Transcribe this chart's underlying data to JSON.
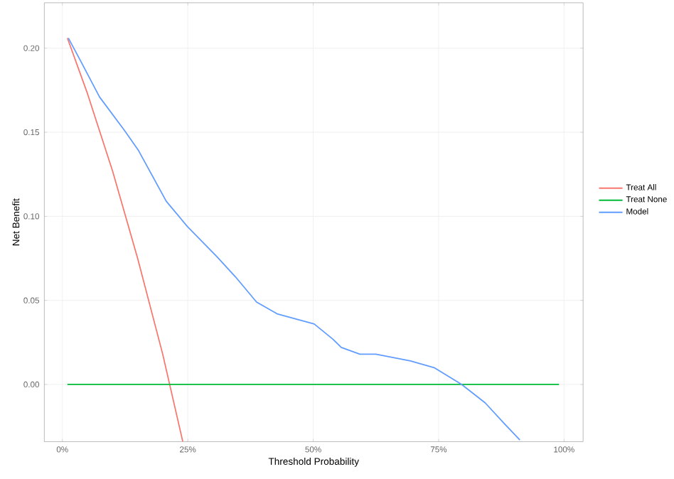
{
  "chart_data": {
    "type": "line",
    "xlabel": "Threshold Probability",
    "ylabel": "Net Benefit",
    "xlim": [
      -0.036,
      1.038
    ],
    "ylim": [
      -0.034,
      0.227
    ],
    "xticks": [
      {
        "value": 0,
        "label": "0%"
      },
      {
        "value": 0.25,
        "label": "25%"
      },
      {
        "value": 0.5,
        "label": "50%"
      },
      {
        "value": 0.75,
        "label": "75%"
      },
      {
        "value": 1,
        "label": "100%"
      }
    ],
    "yticks": [
      {
        "value": 0,
        "label": "0.00"
      },
      {
        "value": 0.05,
        "label": "0.05"
      },
      {
        "value": 0.1,
        "label": "0.10"
      },
      {
        "value": 0.15,
        "label": "0.15"
      },
      {
        "value": 0.2,
        "label": "0.20"
      }
    ],
    "grid": true,
    "legend": "right",
    "line_style": "solid",
    "marker": "none",
    "series": [
      {
        "name": "Treat All",
        "color": "#f8766d",
        "x": [
          0.01,
          0.05,
          0.1,
          0.15,
          0.2,
          0.24
        ],
        "values": [
          0.206,
          0.173,
          0.127,
          0.075,
          0.018,
          -0.034
        ]
      },
      {
        "name": "Treat None",
        "color": "#00ba38",
        "x": [
          0.01,
          0.99
        ],
        "values": [
          0,
          0
        ]
      },
      {
        "name": "Model",
        "color": "#619cff",
        "x": [
          0.012,
          0.037,
          0.074,
          0.124,
          0.152,
          0.207,
          0.249,
          0.308,
          0.345,
          0.387,
          0.428,
          0.502,
          0.539,
          0.556,
          0.593,
          0.625,
          0.694,
          0.741,
          0.796,
          0.843,
          0.88,
          0.912
        ],
        "values": [
          0.206,
          0.192,
          0.171,
          0.151,
          0.139,
          0.109,
          0.094,
          0.076,
          0.064,
          0.049,
          0.042,
          0.036,
          0.027,
          0.022,
          0.018,
          0.018,
          0.014,
          0.01,
          0.0,
          -0.011,
          -0.023,
          -0.033
        ]
      }
    ]
  }
}
